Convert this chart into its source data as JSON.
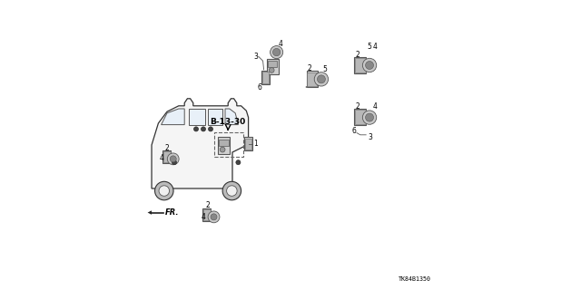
{
  "bg_color": "#ffffff",
  "diagram_label": "B-13-30",
  "part_number": "TK84B1350",
  "fr_label": "FR."
}
